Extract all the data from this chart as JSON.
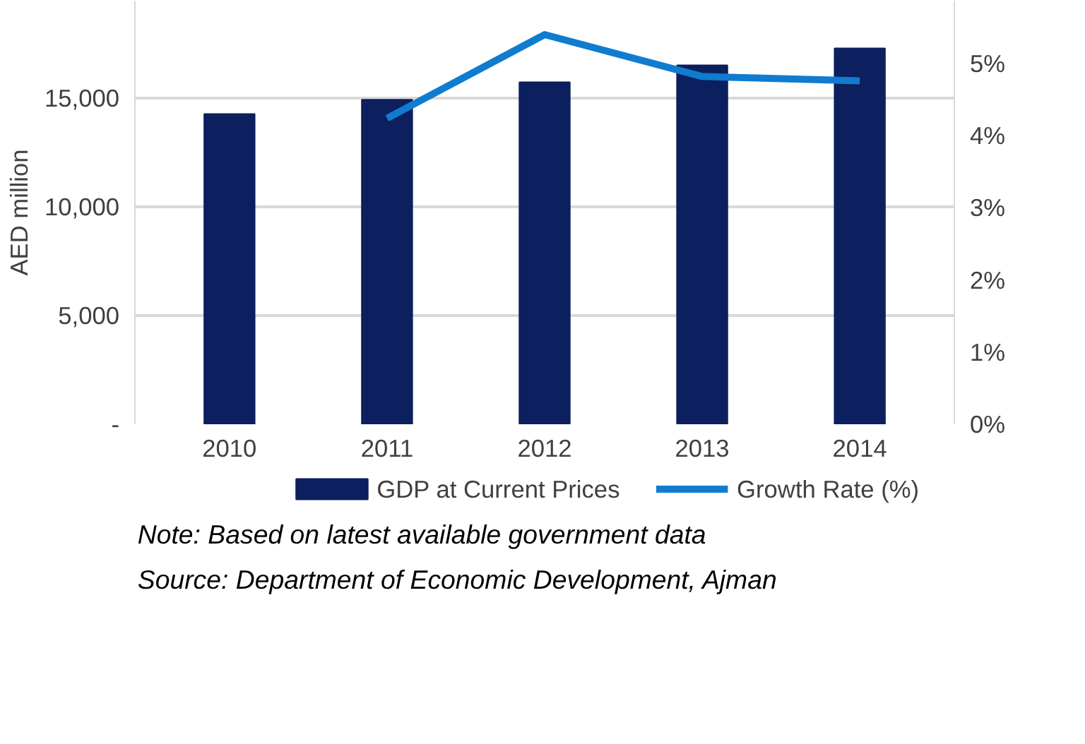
{
  "chart_data": {
    "type": "bar",
    "categories": [
      "2010",
      "2011",
      "2012",
      "2013",
      "2014"
    ],
    "ylabel": "AED million",
    "series": [
      {
        "name": "GDP at Current Prices",
        "color": "#0c1f5e",
        "values": [
          14280,
          14940,
          15750,
          16530,
          17310
        ]
      },
      {
        "name": "Growth Rate (%)",
        "type": "line",
        "axis": "y2",
        "color": "#0f7ccf",
        "values": [
          null,
          4.24,
          5.4,
          4.82,
          4.76
        ]
      }
    ],
    "ylim": [
      0,
      19500
    ],
    "yticks": [
      {
        "value": 0,
        "label": "-"
      },
      {
        "value": 5000,
        "label": "5,000"
      },
      {
        "value": 10000,
        "label": "10,000"
      },
      {
        "value": 15000,
        "label": "15,000"
      }
    ],
    "y2lim": [
      0,
      5.87
    ],
    "y2ticks": [
      {
        "value": 0,
        "label": "0%"
      },
      {
        "value": 1,
        "label": "1%"
      },
      {
        "value": 2,
        "label": "2%"
      },
      {
        "value": 3,
        "label": "3%"
      },
      {
        "value": 4,
        "label": "4%"
      },
      {
        "value": 5,
        "label": "5%"
      }
    ],
    "grid": "y",
    "legend": "bottom",
    "marker": "none",
    "annotations": [
      "Note: Based on latest available government data",
      "Source: Department of Economic Development, Ajman"
    ]
  }
}
